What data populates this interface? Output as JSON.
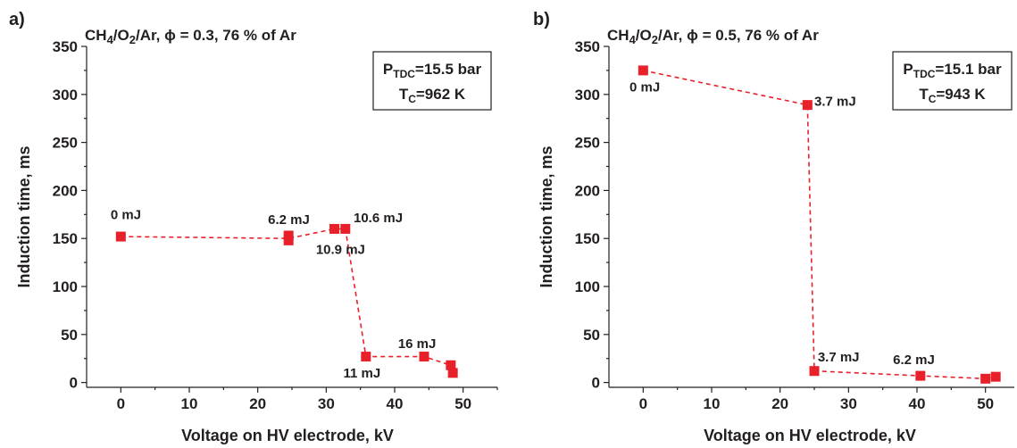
{
  "chart_data": [
    {
      "type": "scatter",
      "panel_label": "a)",
      "title": {
        "pre": "CH",
        "sub1": "4",
        "mid": "/O",
        "sub2": "2",
        "post": "/Ar, ϕ = 0.3, 76 % of Ar"
      },
      "xlabel": "Voltage on HV electrode, kV",
      "ylabel": "Induction time, ms",
      "xlim": [
        -5,
        55
      ],
      "ylim": [
        -5,
        350
      ],
      "xticks": [
        0,
        10,
        20,
        30,
        40,
        50
      ],
      "yticks": [
        0,
        50,
        100,
        150,
        200,
        250,
        300,
        350
      ],
      "x_minor_step": 5,
      "y_minor_step": 25,
      "points": [
        {
          "x": 0,
          "y": 152
        },
        {
          "x": 24.5,
          "y": 153
        },
        {
          "x": 24.5,
          "y": 148
        },
        {
          "x": 31.2,
          "y": 160
        },
        {
          "x": 32.8,
          "y": 160
        },
        {
          "x": 35.8,
          "y": 27
        },
        {
          "x": 44.3,
          "y": 27
        },
        {
          "x": 48.2,
          "y": 18
        },
        {
          "x": 48.5,
          "y": 10
        }
      ],
      "line": [
        {
          "x": 0,
          "y": 152
        },
        {
          "x": 24.5,
          "y": 150
        },
        {
          "x": 31.2,
          "y": 160
        },
        {
          "x": 32.8,
          "y": 160
        },
        {
          "x": 35.8,
          "y": 27
        },
        {
          "x": 44.3,
          "y": 27
        },
        {
          "x": 48.2,
          "y": 18
        },
        {
          "x": 48.5,
          "y": 10
        }
      ],
      "annotations": [
        {
          "text": "0 mJ",
          "x": -1.5,
          "y": 170
        },
        {
          "text": "6.2 mJ",
          "x": 21.5,
          "y": 165
        },
        {
          "text": "10.6 mJ",
          "x": 34.0,
          "y": 167
        },
        {
          "text": "10.9 mJ",
          "x": 28.5,
          "y": 134
        },
        {
          "text": "11 mJ",
          "x": 32.5,
          "y": 5
        },
        {
          "text": "16 mJ",
          "x": 40.5,
          "y": 36
        }
      ],
      "conditions": [
        {
          "main": "P",
          "sub": "TDC",
          "rest": "=15.5 bar"
        },
        {
          "main": "T",
          "sub": "C",
          "rest": "=962 K"
        }
      ],
      "legend_position": "top-right",
      "grid": false,
      "marker_color": "#e8202a"
    },
    {
      "type": "scatter",
      "panel_label": "b)",
      "title": {
        "pre": "CH",
        "sub1": "4",
        "mid": "/O",
        "sub2": "2",
        "post": "/Ar, ϕ = 0.5, 76 % of Ar"
      },
      "xlabel": "Voltage on HV electrode, kV",
      "ylabel": "Induction time, ms",
      "xlim": [
        -5,
        55
      ],
      "ylim": [
        -5,
        350
      ],
      "xticks": [
        0,
        10,
        20,
        30,
        40,
        50
      ],
      "yticks": [
        0,
        50,
        100,
        150,
        200,
        250,
        300,
        350
      ],
      "x_minor_step": 5,
      "y_minor_step": 25,
      "points": [
        {
          "x": 0,
          "y": 325
        },
        {
          "x": 24,
          "y": 289
        },
        {
          "x": 25,
          "y": 12
        },
        {
          "x": 40.5,
          "y": 7
        },
        {
          "x": 50,
          "y": 4
        },
        {
          "x": 51.5,
          "y": 6
        }
      ],
      "line": [
        {
          "x": 0,
          "y": 325
        },
        {
          "x": 24,
          "y": 289
        },
        {
          "x": 25,
          "y": 12
        },
        {
          "x": 40.5,
          "y": 7
        },
        {
          "x": 50,
          "y": 4
        },
        {
          "x": 51.5,
          "y": 6
        }
      ],
      "annotations": [
        {
          "text": "0 mJ",
          "x": -2.0,
          "y": 303
        },
        {
          "text": "3.7 mJ",
          "x": 25.0,
          "y": 288
        },
        {
          "text": "3.7 mJ",
          "x": 25.5,
          "y": 22
        },
        {
          "text": "6.2 mJ",
          "x": 36.5,
          "y": 19
        }
      ],
      "conditions": [
        {
          "main": "P",
          "sub": "TDC",
          "rest": "=15.1 bar"
        },
        {
          "main": "T",
          "sub": "C",
          "rest": "=943 K"
        }
      ],
      "legend_position": "top-right",
      "grid": false,
      "marker_color": "#e8202a"
    }
  ]
}
